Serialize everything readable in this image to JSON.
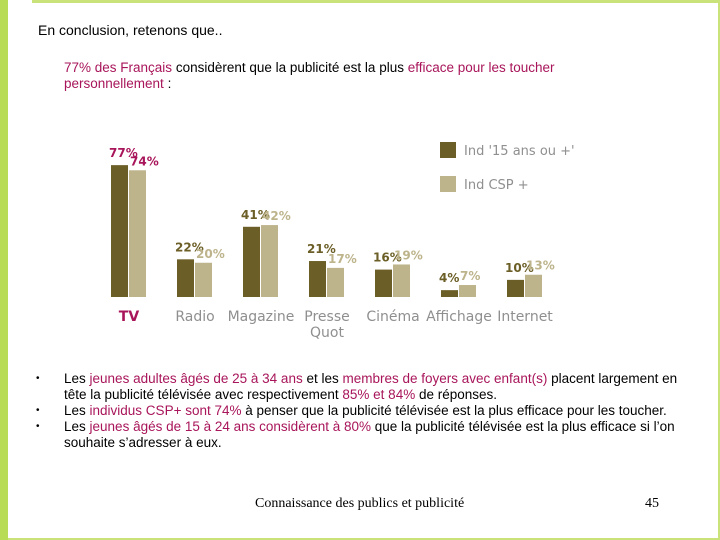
{
  "slide": {
    "title": "En conclusion, retenons que..",
    "intro": {
      "pct": "77% des Français",
      "t1": " considèrent que la publicité est la plus ",
      "hl2": "efficace pour les toucher personnellement",
      "t2": " :"
    },
    "bullets": [
      {
        "parts": [
          {
            "text": "Les ",
            "hl": false
          },
          {
            "text": "jeunes adultes âgés de 25 à 34 ans",
            "hl": true
          },
          {
            "text": " et les ",
            "hl": false
          },
          {
            "text": "membres de foyers avec enfant(s)",
            "hl": true
          },
          {
            "text": " placent largement en tête la publicité télévisée avec respectivement ",
            "hl": false
          },
          {
            "text": "85% et 84%",
            "hl": true
          },
          {
            "text": " de réponses.",
            "hl": false
          }
        ]
      },
      {
        "parts": [
          {
            "text": "Les ",
            "hl": false
          },
          {
            "text": "individus CSP+ sont 74%",
            "hl": true
          },
          {
            "text": " à penser que la publicité télévisée est la plus efficace pour les toucher.",
            "hl": false
          }
        ]
      },
      {
        "parts": [
          {
            "text": "Les ",
            "hl": false
          },
          {
            "text": "jeunes âgés de 15 à 24 ans considèrent à 80%",
            "hl": true
          },
          {
            "text": " que la publicité télévisée est la plus efficace si l’on souhaite s’adresser à eux.",
            "hl": false
          }
        ]
      }
    ],
    "bullet_glyph": "•",
    "footer": "Connaissance des publics et publicité",
    "page_number": "45"
  },
  "colors": {
    "series1": "#6b5e26",
    "series2": "#bdb48c",
    "label_tv": "#a8155a",
    "label_other": "#8f8f8f",
    "highlight": "#a8155a"
  },
  "chart_data": {
    "type": "bar",
    "title": "",
    "xlabel": "",
    "ylabel": "",
    "ylim": [
      0,
      80
    ],
    "categories": [
      "TV",
      "Radio",
      "Magazine",
      "Presse Quot",
      "Cinéma",
      "Affichage",
      "Internet"
    ],
    "category_lines": [
      [
        "TV"
      ],
      [
        "Radio"
      ],
      [
        "Magazine"
      ],
      [
        "Presse",
        "Quot"
      ],
      [
        "Cinéma"
      ],
      [
        "Affichage"
      ],
      [
        "Internet"
      ]
    ],
    "series": [
      {
        "name": "Ind '15 ans ou +'",
        "values": [
          77,
          22,
          41,
          21,
          16,
          4,
          10
        ]
      },
      {
        "name": "Ind CSP +",
        "values": [
          74,
          20,
          42,
          17,
          19,
          7,
          13
        ]
      }
    ],
    "value_suffix": "%",
    "legend_position": "top-right",
    "grid": false
  }
}
